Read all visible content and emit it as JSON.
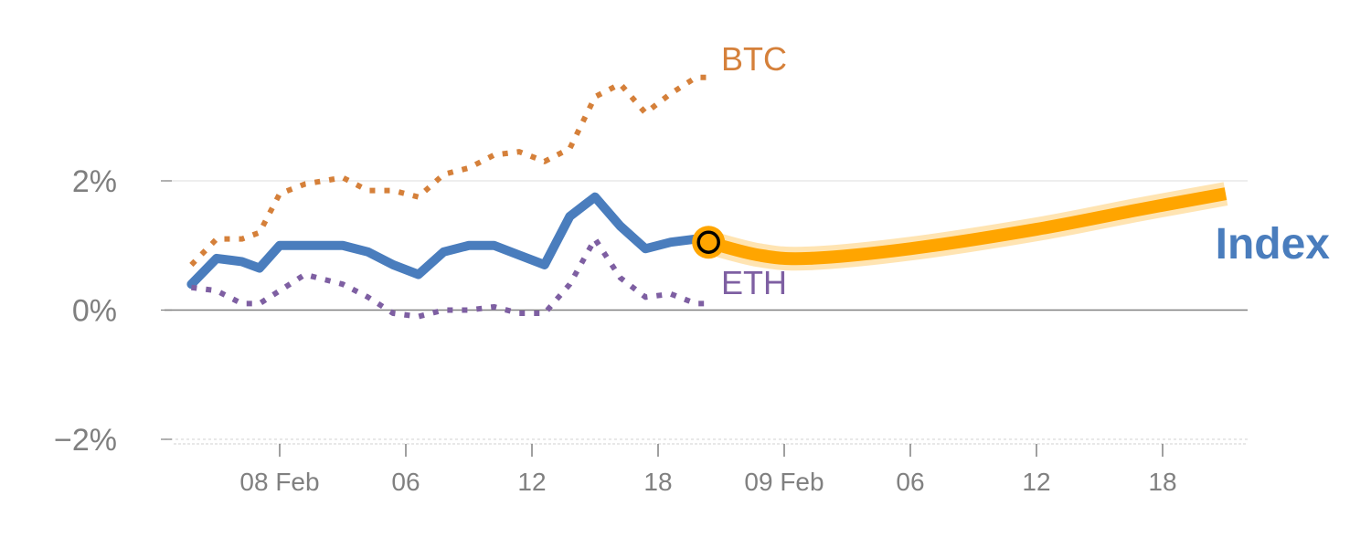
{
  "chart_data": {
    "type": "line",
    "y_unit": "%",
    "ylim": [
      -2,
      4
    ],
    "xlim": [
      -5,
      38
    ],
    "x_ticks": [
      {
        "x": 0,
        "label": "08 Feb"
      },
      {
        "x": 5,
        "label": "06"
      },
      {
        "x": 10,
        "label": "12"
      },
      {
        "x": 15,
        "label": "18"
      },
      {
        "x": 20,
        "label": "09 Feb"
      },
      {
        "x": 25,
        "label": "06"
      },
      {
        "x": 30,
        "label": "12"
      },
      {
        "x": 35,
        "label": "18"
      }
    ],
    "y_ticks": [
      {
        "y": 2,
        "label": "2%"
      },
      {
        "y": 0,
        "label": "0%"
      },
      {
        "y": -2,
        "label": "−2%"
      }
    ],
    "grid": true,
    "series": [
      {
        "name": "BTC",
        "color": "#d5803a",
        "style": "dotted",
        "x": [
          -3.5,
          -2.5,
          -1.5,
          -0.8,
          0,
          1,
          2.5,
          3.5,
          4.5,
          5.5,
          6.5,
          7.5,
          8.5,
          9.5,
          10.5,
          11.5,
          12.5,
          13.5,
          14.5,
          15.5,
          16.5,
          17
        ],
        "y": [
          0.7,
          1.1,
          1.1,
          1.2,
          1.8,
          1.95,
          2.05,
          1.85,
          1.85,
          1.75,
          2.1,
          2.2,
          2.4,
          2.45,
          2.3,
          2.5,
          3.3,
          3.5,
          3.05,
          3.35,
          3.6,
          3.6
        ]
      },
      {
        "name": "Index",
        "color": "#4a7dbd",
        "style": "solid",
        "x": [
          -3.5,
          -2.5,
          -1.5,
          -0.8,
          0,
          1,
          2.5,
          3.5,
          4.5,
          5.5,
          6.5,
          7.5,
          8.5,
          9.5,
          10.5,
          11.5,
          12.5,
          13.5,
          14.5,
          15.5,
          16.5,
          17
        ],
        "y": [
          0.4,
          0.8,
          0.75,
          0.65,
          1.0,
          1.0,
          1.0,
          0.9,
          0.7,
          0.55,
          0.9,
          1.0,
          1.0,
          0.85,
          0.7,
          1.45,
          1.75,
          1.3,
          0.95,
          1.05,
          1.1,
          1.1
        ]
      },
      {
        "name": "ETH",
        "color": "#7e5fa2",
        "style": "dotted",
        "x": [
          -3.5,
          -2.5,
          -1.5,
          -0.8,
          0,
          1,
          2.5,
          3.5,
          4.5,
          5.5,
          6.5,
          7.5,
          8.5,
          9.5,
          10.5,
          11.5,
          12.5,
          13.5,
          14.5,
          15.5,
          16.5,
          17
        ],
        "y": [
          0.35,
          0.3,
          0.1,
          0.1,
          0.3,
          0.55,
          0.4,
          0.2,
          -0.05,
          -0.1,
          0.0,
          0.0,
          0.05,
          -0.05,
          -0.05,
          0.4,
          1.1,
          0.5,
          0.2,
          0.25,
          0.1,
          0.1
        ]
      }
    ],
    "projection": {
      "color": "#ffa500",
      "x": [
        17,
        19,
        21,
        25,
        30,
        34,
        37.5
      ],
      "y": [
        1.05,
        0.85,
        0.8,
        0.95,
        1.25,
        1.55,
        1.8
      ]
    },
    "marker": {
      "x": 17,
      "y": 1.05,
      "color": "#ffa500"
    }
  }
}
